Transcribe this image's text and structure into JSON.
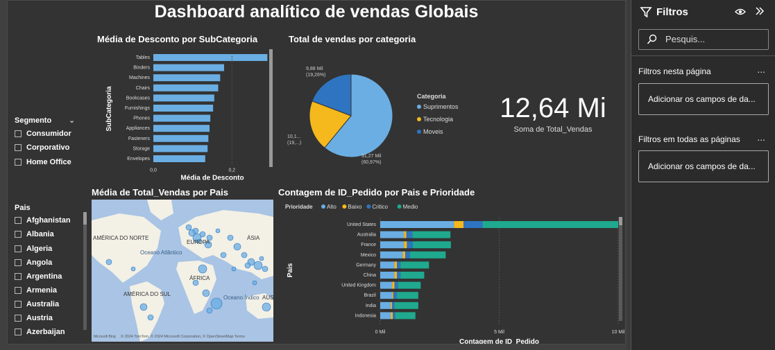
{
  "title": "Dashboard analítico de vendas Globais",
  "segment_slicer": {
    "header": "Segmento",
    "items": [
      "Consumidor",
      "Corporativo",
      "Home Office"
    ]
  },
  "country_slicer": {
    "header": "Pais",
    "items": [
      "Afghanistan",
      "Albania",
      "Algeria",
      "Angola",
      "Argentina",
      "Armenia",
      "Australia",
      "Austria",
      "Azerbaijan"
    ]
  },
  "kpi": {
    "value": "12,64 Mi",
    "label": "Soma de Total_Vendas"
  },
  "map": {
    "title": "Média de Total_Vendas por Pais",
    "labels": [
      "AMÉRICA DO NORTE",
      "EUROPA",
      "ÁSIA",
      "Oceano Atlântico",
      "ÁFRICA",
      "AMÉRICA DO SUL",
      "Oceano Índico",
      "AUS"
    ],
    "attribution": "© 2024 TomTom, © 2024 Microsoft Corporation, © OpenStreetMap  Terms",
    "bing_logo": "Microsoft Bing"
  },
  "filters_pane": {
    "title": "Filtros",
    "search_placeholder": "Pesquis...",
    "page_section": "Filtros nesta página",
    "page_card": "Adicionar os campos de da...",
    "all_section": "Filtros em todas as páginas",
    "all_card": "Adicionar os campos de da...",
    "more": "..."
  },
  "colors": {
    "alto": "#6aaee3",
    "baixo": "#f5b81d",
    "critico": "#2e74c0",
    "medio": "#1fa98e",
    "bar": "#6aaee3"
  },
  "chart_data": [
    {
      "type": "bar",
      "orientation": "horizontal",
      "title": "Média de Desconto por SubCategoria",
      "xlabel": "Média de Desconto",
      "ylabel": "SubCategoria",
      "categories": [
        "Tables",
        "Binders",
        "Machines",
        "Chairs",
        "Bookcases",
        "Furnishings",
        "Phones",
        "Appliances",
        "Fasteners",
        "Storage",
        "Envelopes"
      ],
      "values": [
        0.29,
        0.18,
        0.17,
        0.165,
        0.155,
        0.152,
        0.145,
        0.143,
        0.14,
        0.138,
        0.132
      ],
      "xticks": [
        "0,0",
        "0,2"
      ],
      "xlim": [
        0,
        0.3
      ]
    },
    {
      "type": "pie",
      "title": "Total de vendas por categoria",
      "legend_title": "Categoria",
      "labels": [
        "Suprimentos",
        "Tecnologia",
        "Moveis"
      ],
      "values": [
        60.97,
        19.77,
        19.26
      ],
      "data_labels": [
        [
          "31,27 Mil",
          "(60,97%)"
        ],
        [
          "10,1...",
          "(19,...)"
        ],
        [
          "9,88 Mil",
          "(19,26%)"
        ]
      ],
      "colors": [
        "#6aaee3",
        "#f5b81d",
        "#2e74c0"
      ]
    },
    {
      "type": "bar",
      "orientation": "horizontal",
      "stacked": true,
      "title": "Contagem de ID_Pedido por Pais e Prioridade",
      "legend_title": "Prioridade",
      "xlabel": "Contagem de ID_Pedido",
      "ylabel": "Pais",
      "categories": [
        "United States",
        "Australia",
        "France",
        "Mexico",
        "Germany",
        "China",
        "United Kingdom",
        "Brazil",
        "India",
        "Indonesia"
      ],
      "series": [
        {
          "name": "Alto",
          "values": [
            3.1,
            1.0,
            1.0,
            0.95,
            0.6,
            0.6,
            0.5,
            0.5,
            0.45,
            0.45
          ]
        },
        {
          "name": "Baixo",
          "values": [
            0.4,
            0.1,
            0.12,
            0.1,
            0.1,
            0.1,
            0.1,
            0.05,
            0.05,
            0.08
          ]
        },
        {
          "name": "Critico",
          "values": [
            0.8,
            0.25,
            0.25,
            0.2,
            0.15,
            0.15,
            0.15,
            0.15,
            0.1,
            0.1
          ]
        },
        {
          "name": "Medio",
          "values": [
            5.7,
            1.6,
            1.6,
            1.5,
            1.2,
            1.0,
            0.95,
            0.9,
            1.0,
            0.85
          ]
        }
      ],
      "xticks": [
        "0 Mil",
        "5 Mil",
        "10 Mil"
      ],
      "xlim": [
        0,
        10
      ]
    }
  ]
}
